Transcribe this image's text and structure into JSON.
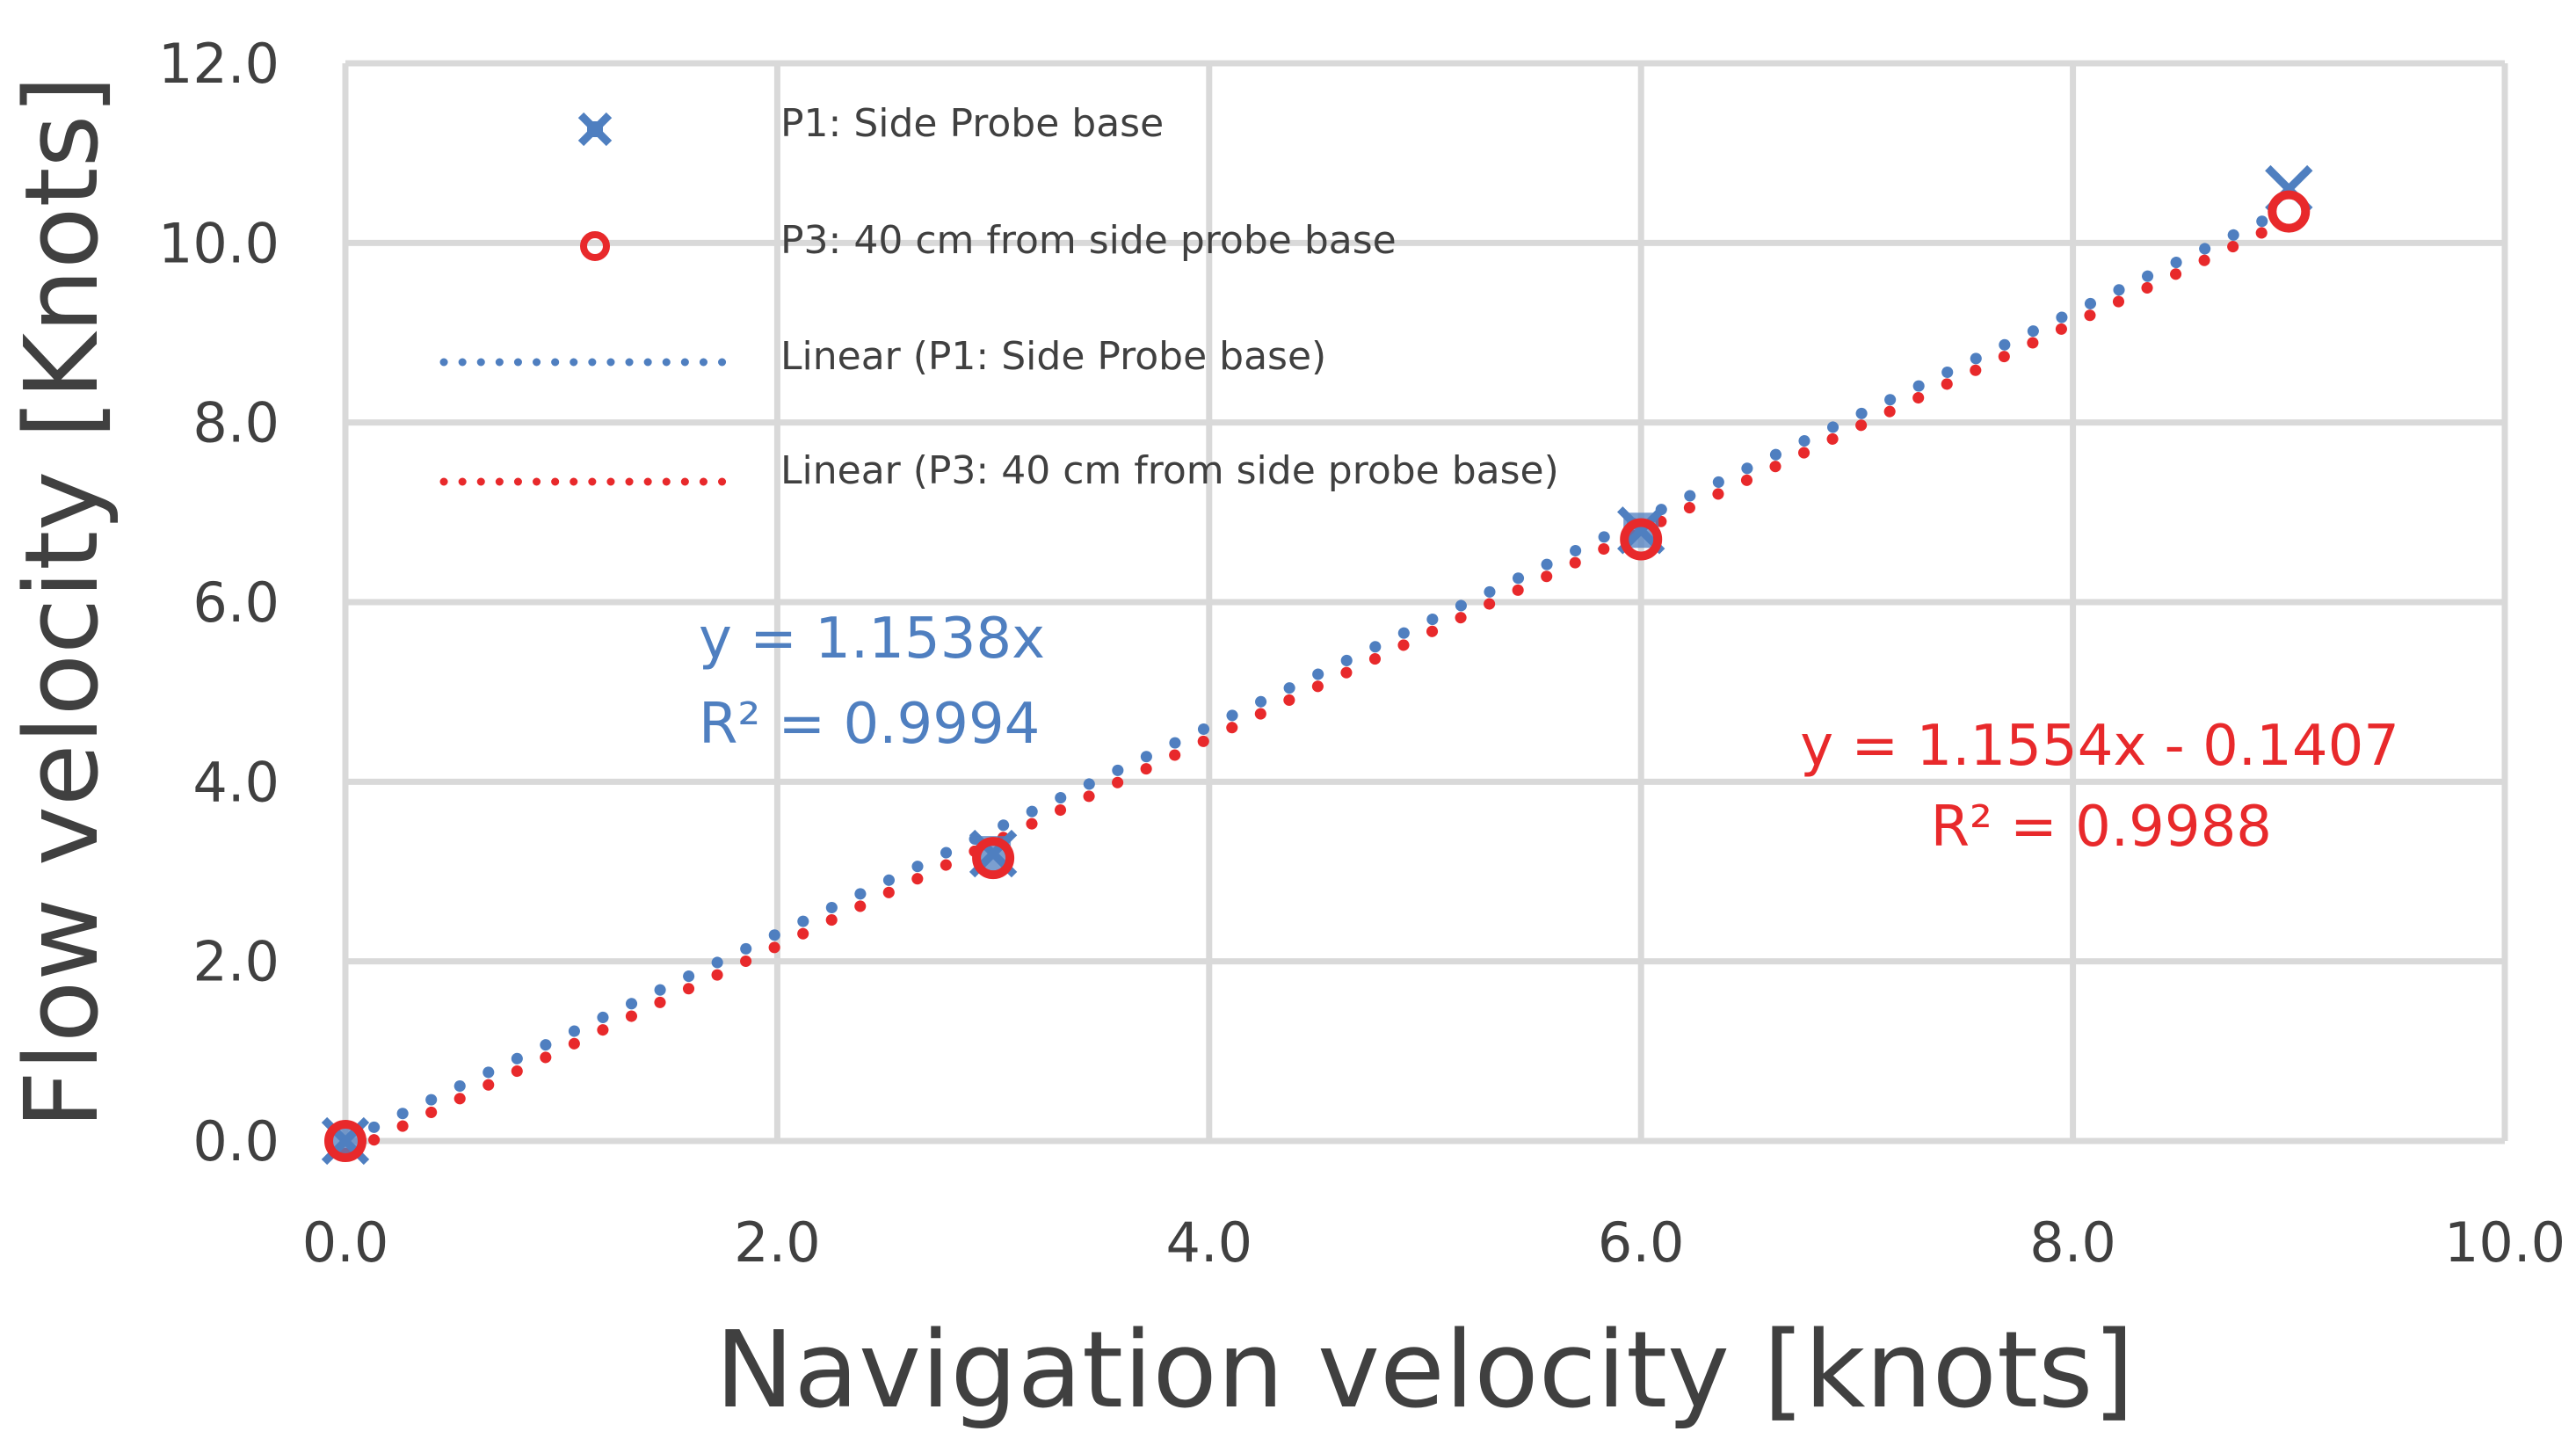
{
  "chart_data": {
    "type": "scatter",
    "title": "",
    "xlabel": "Navigation velocity [knots]",
    "ylabel": "Flow velocity [Knots]",
    "xlim": [
      0,
      10
    ],
    "ylim": [
      0,
      12
    ],
    "xticks": [
      "0.0",
      "2.0",
      "4.0",
      "6.0",
      "8.0",
      "10.0"
    ],
    "yticks": [
      "0.0",
      "2.0",
      "4.0",
      "6.0",
      "8.0",
      "10.0",
      "12.0"
    ],
    "grid": true,
    "legend_position": "top-left",
    "series": [
      {
        "name": "P1: Side Probe base",
        "marker": "x",
        "color": "#4f7fc0",
        "x": [
          0,
          3,
          6,
          9
        ],
        "y": [
          0.0,
          3.2,
          6.8,
          10.6
        ]
      },
      {
        "name": "P3: 40 cm from side probe base",
        "marker": "circle",
        "color": "#e8292b",
        "x": [
          0,
          3,
          6,
          9
        ],
        "y": [
          0.0,
          3.15,
          6.7,
          10.35
        ]
      }
    ],
    "trendlines": [
      {
        "name": "Linear (P1: Side Probe base)",
        "color": "#4f7fc0",
        "slope": 1.1538,
        "intercept": 0,
        "x_range": [
          0,
          9
        ],
        "equation": "y = 1.1538x",
        "r2": "R² = 0.9994"
      },
      {
        "name": "Linear (P3: 40 cm from side probe base)",
        "color": "#e8292b",
        "slope": 1.1554,
        "intercept": -0.1407,
        "x_range": [
          0,
          9
        ],
        "equation": "y = 1.1554x - 0.1407",
        "r2": "R² = 0.9988"
      }
    ]
  }
}
